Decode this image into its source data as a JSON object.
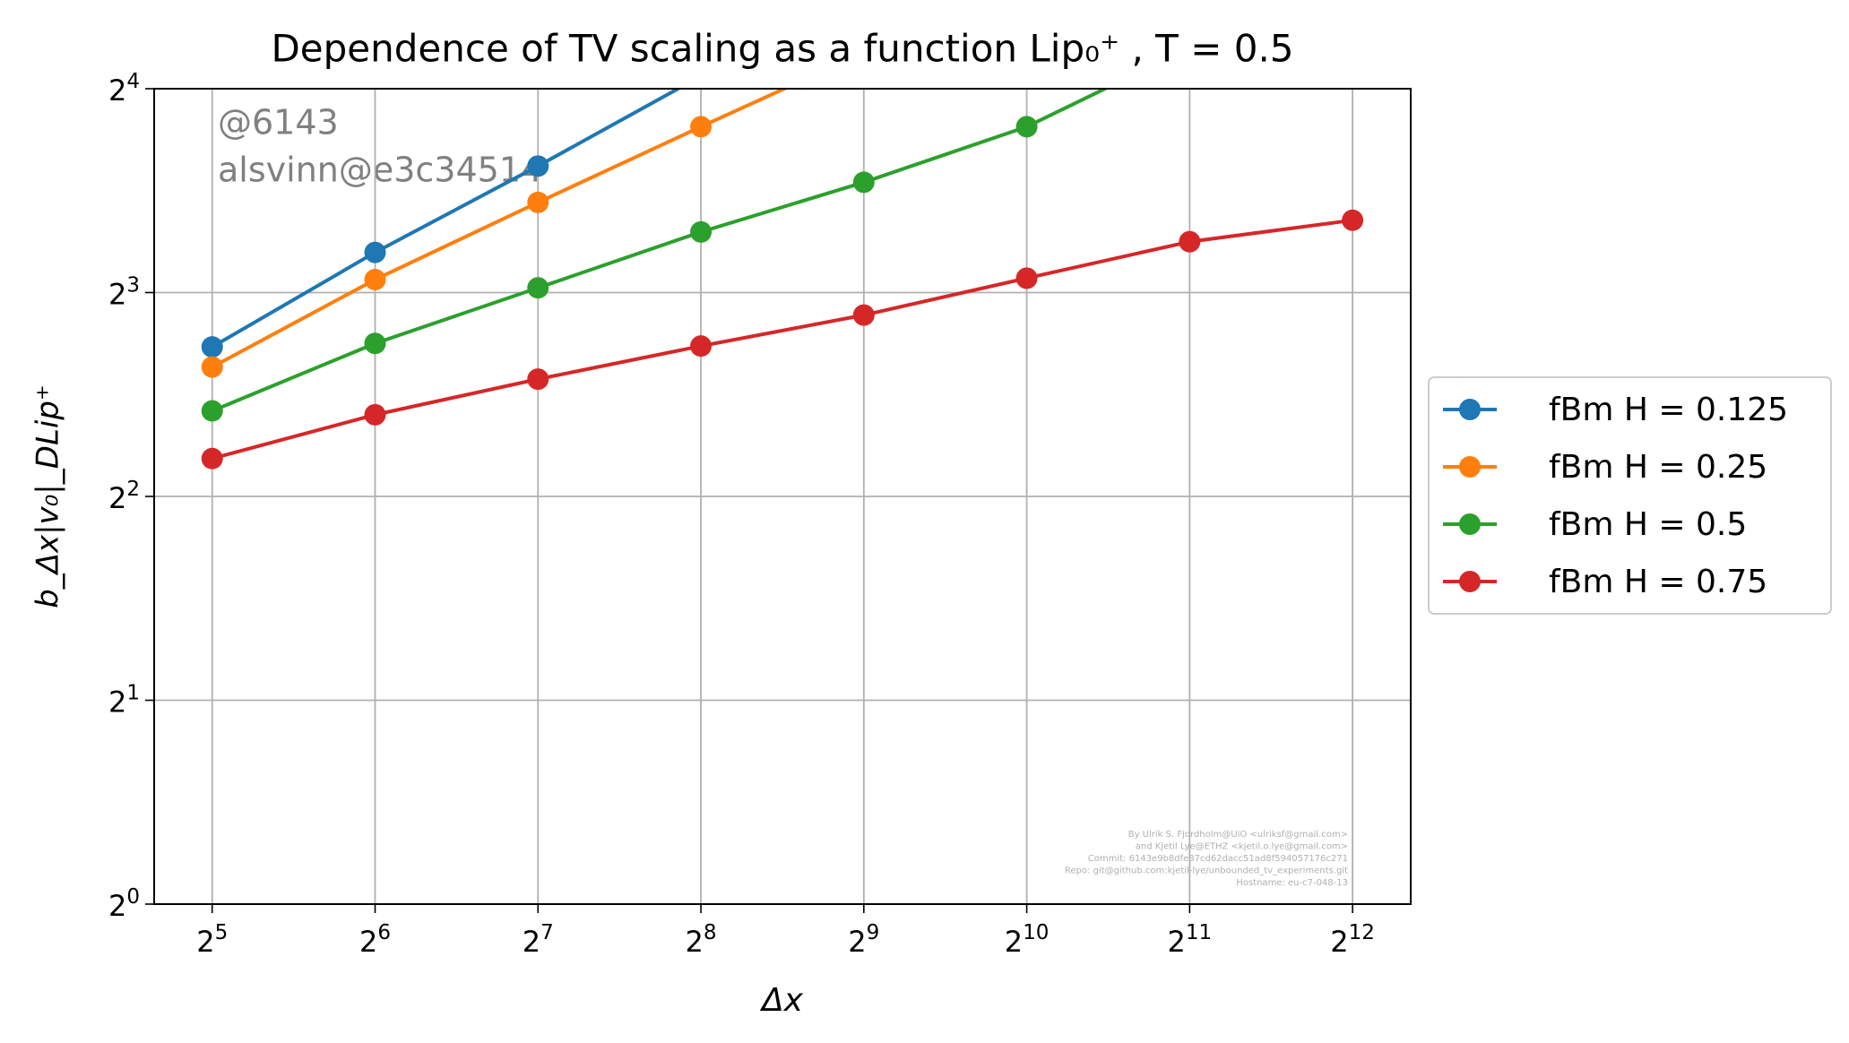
{
  "chart_data": {
    "type": "line",
    "title": "Dependence of TV scaling as a function Lip₀⁺ , T = 0.5",
    "x_label": "Δx",
    "y_label": "b_Δx|v₀|_DLip⁺",
    "annotations": [
      "@6143",
      "alsvinn@e3c34514"
    ],
    "footer": [
      "By Ulrik S. Fjordholm@UiO <ulriksf@gmail.com>",
      "and Kjetil Lye@ETHZ <kjetil.o.lye@gmail.com>",
      "Commit: 6143e9b8dfe87cd62dacc51ad8f594057176c271",
      "Repo: git@github.com:kjetil-lye/unbounded_tv_experiments.git",
      "Hostname: eu-c7-048-13"
    ],
    "x": [
      32,
      64,
      128,
      256,
      512,
      1024,
      2048,
      4096
    ],
    "series": [
      {
        "name": "fBm H = 0.125",
        "color": "#1f77b4",
        "values": [
          6.65,
          9.17,
          12.3,
          16.7,
          null,
          null,
          null,
          null
        ]
      },
      {
        "name": "fBm H = 0.25",
        "color": "#ff7f0e",
        "values": [
          6.21,
          8.36,
          10.87,
          14.06,
          18.1,
          null,
          null,
          null
        ]
      },
      {
        "name": "fBm H = 0.5",
        "color": "#2ca02c",
        "values": [
          5.35,
          6.73,
          8.13,
          9.83,
          11.64,
          14.06,
          18.4,
          null
        ]
      },
      {
        "name": "fBm H = 0.75",
        "color": "#d62728",
        "values": [
          4.55,
          5.28,
          5.96,
          6.67,
          7.41,
          8.4,
          9.51,
          10.23
        ]
      }
    ],
    "xscale": "log2",
    "yscale": "log2",
    "xlim": [
      25,
      5246
    ],
    "ylim": [
      1,
      16
    ],
    "xticks": [
      {
        "value": 32,
        "label": "2^5"
      },
      {
        "value": 64,
        "label": "2^6"
      },
      {
        "value": 128,
        "label": "2^7"
      },
      {
        "value": 256,
        "label": "2^8"
      },
      {
        "value": 512,
        "label": "2^9"
      },
      {
        "value": 1024,
        "label": "2^10"
      },
      {
        "value": 2048,
        "label": "2^11"
      },
      {
        "value": 4096,
        "label": "2^12"
      }
    ],
    "yticks": [
      {
        "value": 1,
        "label": "2^0"
      },
      {
        "value": 2,
        "label": "2^1"
      },
      {
        "value": 4,
        "label": "2^2"
      },
      {
        "value": 8,
        "label": "2^3"
      },
      {
        "value": 16,
        "label": "2^4"
      }
    ],
    "grid": true,
    "legend": "outside-right"
  }
}
